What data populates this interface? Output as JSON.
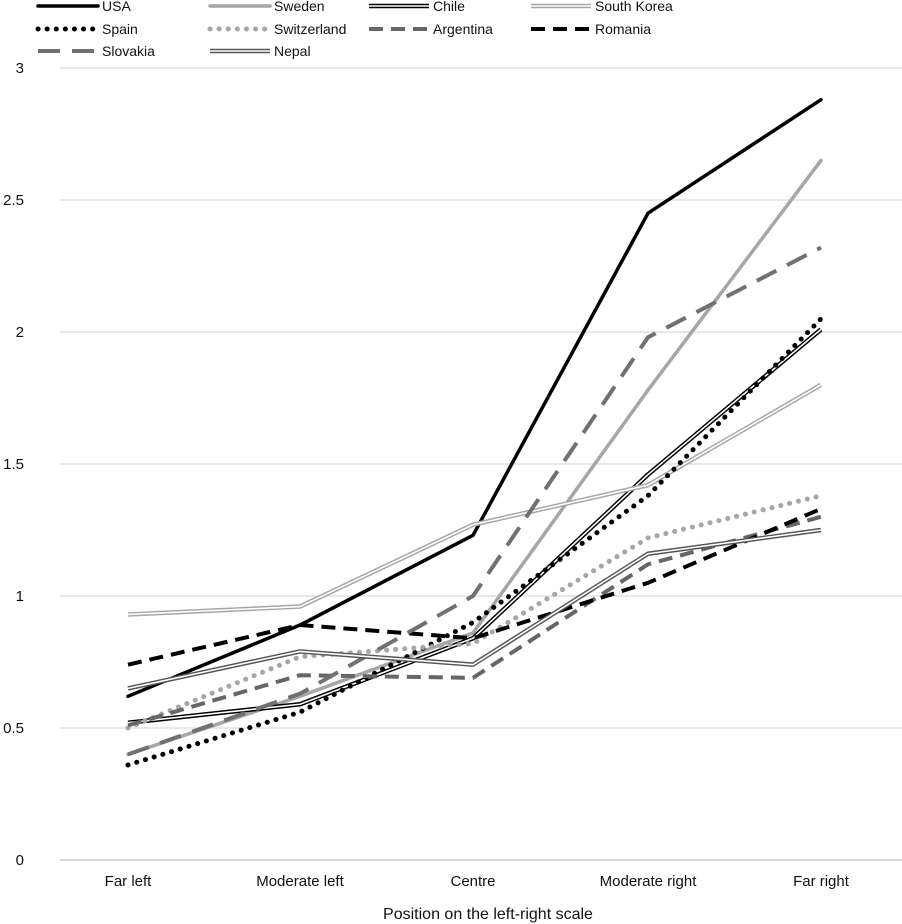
{
  "chart_data": {
    "type": "line",
    "title": "",
    "xlabel": "Position on the left-right scale",
    "ylabel": "",
    "categories": [
      "Far left",
      "Moderate left",
      "Centre",
      "Moderate right",
      "Far right"
    ],
    "ylim": [
      0,
      3
    ],
    "yticks": [
      "0",
      "0.5",
      "1",
      "1.5",
      "2",
      "2.5",
      "3"
    ],
    "grid": "horizontal",
    "legend_position": "top",
    "series": [
      {
        "name": "USA",
        "values": [
          0.62,
          0.89,
          1.23,
          2.45,
          2.88
        ],
        "color": "#000000",
        "style": "solid"
      },
      {
        "name": "Sweden",
        "values": [
          0.4,
          0.62,
          0.86,
          1.78,
          2.65
        ],
        "color": "#a6a6a6",
        "style": "solid"
      },
      {
        "name": "Chile",
        "values": [
          0.52,
          0.59,
          0.84,
          1.46,
          2.01
        ],
        "color": "#000000",
        "style": "double"
      },
      {
        "name": "South Korea",
        "values": [
          0.93,
          0.96,
          1.27,
          1.42,
          1.8
        ],
        "color": "#a6a6a6",
        "style": "double"
      },
      {
        "name": "Spain",
        "values": [
          0.36,
          0.56,
          0.9,
          1.38,
          2.05
        ],
        "color": "#000000",
        "style": "dotted"
      },
      {
        "name": "Switzerland",
        "values": [
          0.5,
          0.77,
          0.82,
          1.22,
          1.38
        ],
        "color": "#a6a6a6",
        "style": "dotted"
      },
      {
        "name": "Argentina",
        "values": [
          0.51,
          0.7,
          0.69,
          1.12,
          1.3
        ],
        "color": "#666666",
        "style": "dashed"
      },
      {
        "name": "Romania",
        "values": [
          0.74,
          0.89,
          0.84,
          1.05,
          1.33
        ],
        "color": "#000000",
        "style": "dashed"
      },
      {
        "name": "Slovakia",
        "values": [
          0.4,
          0.63,
          1.0,
          1.98,
          2.32
        ],
        "color": "#707070",
        "style": "longdash"
      },
      {
        "name": "Nepal",
        "values": [
          0.65,
          0.79,
          0.74,
          1.16,
          1.25
        ],
        "color": "#555555",
        "style": "double"
      }
    ]
  }
}
